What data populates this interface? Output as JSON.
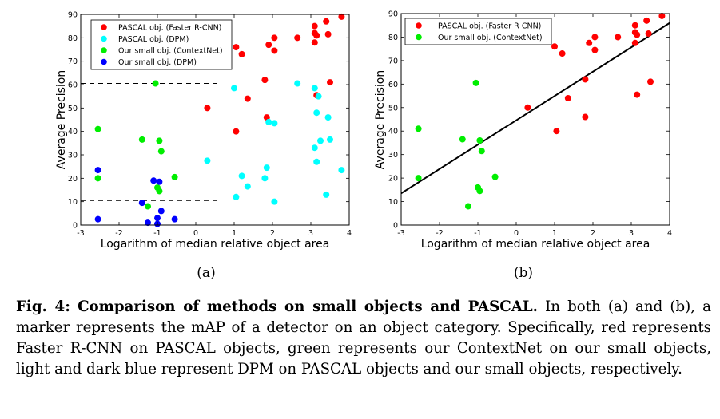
{
  "colors": {
    "red": "#ff0000",
    "cyan": "#00ffff",
    "green": "#00ee00",
    "blue": "#0000ff",
    "axis": "#000000"
  },
  "chart_data": [
    {
      "type": "scatter",
      "id": "a",
      "subfigure_label": "(a)",
      "xlabel": "Logarithm of median relative object area",
      "ylabel": "Average Precision",
      "xlim": [
        -3,
        4
      ],
      "ylim": [
        0,
        90
      ],
      "xticks": [
        -3,
        -2,
        -1,
        0,
        1,
        2,
        3,
        4
      ],
      "yticks": [
        0,
        10,
        20,
        30,
        40,
        50,
        60,
        70,
        80,
        90
      ],
      "legend_position": "top-left",
      "dashed_lines": [
        {
          "y": 60.5,
          "x_from": -3,
          "x_to": 0.6
        },
        {
          "y": 10.5,
          "x_from": -3,
          "x_to": 0.6
        }
      ],
      "series": [
        {
          "name": "PASCAL obj. (Faster R-CNN)",
          "color": "red",
          "points": [
            [
              0.3,
              50
            ],
            [
              1.05,
              40
            ],
            [
              1.05,
              76
            ],
            [
              1.2,
              73
            ],
            [
              1.35,
              54
            ],
            [
              1.8,
              62
            ],
            [
              1.85,
              46
            ],
            [
              1.9,
              77
            ],
            [
              2.05,
              80
            ],
            [
              2.05,
              74.5
            ],
            [
              2.65,
              80
            ],
            [
              3.1,
              85
            ],
            [
              3.1,
              82
            ],
            [
              3.15,
              81
            ],
            [
              3.1,
              78
            ],
            [
              3.15,
              55.5
            ],
            [
              3.4,
              87
            ],
            [
              3.45,
              81.5
            ],
            [
              3.5,
              61
            ],
            [
              3.8,
              89
            ]
          ]
        },
        {
          "name": "PASCAL obj. (DPM)",
          "color": "cyan",
          "points": [
            [
              0.3,
              27.5
            ],
            [
              1.0,
              58.5
            ],
            [
              1.05,
              12
            ],
            [
              1.2,
              21
            ],
            [
              1.35,
              16.5
            ],
            [
              1.8,
              20
            ],
            [
              1.85,
              24.5
            ],
            [
              1.9,
              44
            ],
            [
              2.05,
              43.5
            ],
            [
              2.05,
              10
            ],
            [
              2.65,
              60.5
            ],
            [
              3.1,
              58.5
            ],
            [
              3.1,
              33
            ],
            [
              3.15,
              27
            ],
            [
              3.15,
              48
            ],
            [
              3.2,
              55
            ],
            [
              3.25,
              36
            ],
            [
              3.4,
              13
            ],
            [
              3.45,
              46
            ],
            [
              3.5,
              36.5
            ],
            [
              3.8,
              23.5
            ]
          ]
        },
        {
          "name": "Our small obj. (ContextNet)",
          "color": "green",
          "points": [
            [
              -2.55,
              41
            ],
            [
              -2.55,
              20
            ],
            [
              -1.4,
              36.5
            ],
            [
              -1.25,
              8
            ],
            [
              -1.05,
              60.5
            ],
            [
              -1.0,
              16
            ],
            [
              -0.95,
              14.5
            ],
            [
              -0.95,
              36
            ],
            [
              -0.9,
              31.5
            ],
            [
              -0.55,
              20.5
            ]
          ]
        },
        {
          "name": "Our small obj. (DPM)",
          "color": "blue",
          "points": [
            [
              -2.55,
              23.5
            ],
            [
              -2.55,
              2.5
            ],
            [
              -1.4,
              9.5
            ],
            [
              -1.25,
              1
            ],
            [
              -1.1,
              19
            ],
            [
              -1.0,
              3
            ],
            [
              -0.95,
              18.5
            ],
            [
              -0.9,
              6
            ],
            [
              -0.55,
              2.5
            ],
            [
              -1.0,
              0.5
            ]
          ]
        }
      ]
    },
    {
      "type": "scatter",
      "id": "b",
      "subfigure_label": "(b)",
      "xlabel": "Logarithm of median relative object area",
      "ylabel": "Average Precision",
      "xlim": [
        -3,
        4
      ],
      "ylim": [
        0,
        90
      ],
      "xticks": [
        -3,
        -2,
        -1,
        0,
        1,
        2,
        3,
        4
      ],
      "yticks": [
        0,
        10,
        20,
        30,
        40,
        50,
        60,
        70,
        80,
        90
      ],
      "legend_position": "top-left",
      "fit_line": {
        "x0": -3,
        "y0": 13.5,
        "x1": 4,
        "y1": 86
      },
      "series": [
        {
          "name": "PASCAL obj. (Faster R-CNN)",
          "color": "red",
          "points": [
            [
              0.3,
              50
            ],
            [
              1.05,
              40
            ],
            [
              1.0,
              76
            ],
            [
              1.2,
              73
            ],
            [
              1.35,
              54
            ],
            [
              1.8,
              62
            ],
            [
              1.8,
              46
            ],
            [
              1.9,
              77.5
            ],
            [
              2.05,
              80
            ],
            [
              2.05,
              74.5
            ],
            [
              2.65,
              80
            ],
            [
              3.1,
              85
            ],
            [
              3.1,
              82
            ],
            [
              3.15,
              81
            ],
            [
              3.1,
              77.5
            ],
            [
              3.15,
              55.5
            ],
            [
              3.4,
              87
            ],
            [
              3.45,
              81.5
            ],
            [
              3.5,
              61
            ],
            [
              3.8,
              89
            ]
          ]
        },
        {
          "name": "Our small obj. (ContextNet)",
          "color": "green",
          "points": [
            [
              -2.55,
              41
            ],
            [
              -2.55,
              20
            ],
            [
              -1.4,
              36.5
            ],
            [
              -1.25,
              8
            ],
            [
              -1.05,
              60.5
            ],
            [
              -1.0,
              16
            ],
            [
              -0.95,
              14.5
            ],
            [
              -0.95,
              36
            ],
            [
              -0.9,
              31.5
            ],
            [
              -0.55,
              20.5
            ]
          ]
        }
      ]
    }
  ],
  "caption": {
    "fig_label": "Fig. 4:",
    "title": "Comparison of methods on small objects and PASCAL.",
    "text": "In both (a) and (b), a marker represents the mAP of a detector on an object category. Specifically, red represents Faster R-CNN on PASCAL objects, green represents our ContextNet on our small objects, light and dark blue represent DPM on PASCAL objects and our small objects, respectively."
  }
}
